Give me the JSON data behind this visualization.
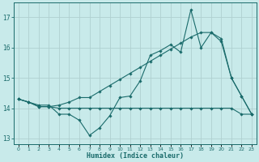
{
  "xlabel": "Humidex (Indice chaleur)",
  "background_color": "#c8eaea",
  "grid_color": "#b0d0d0",
  "line_color": "#1a6b6b",
  "x_values": [
    0,
    1,
    2,
    3,
    4,
    5,
    6,
    7,
    8,
    9,
    10,
    11,
    12,
    13,
    14,
    15,
    16,
    17,
    18,
    19,
    20,
    21,
    22,
    23
  ],
  "series1": [
    14.3,
    14.2,
    14.1,
    14.1,
    13.8,
    13.8,
    13.6,
    13.1,
    13.35,
    13.75,
    14.35,
    14.4,
    14.9,
    15.75,
    15.9,
    16.1,
    15.85,
    17.25,
    16.0,
    16.5,
    16.2,
    15.0,
    14.4,
    13.8
  ],
  "series2": [
    14.3,
    14.2,
    14.05,
    14.05,
    14.0,
    14.0,
    14.0,
    14.0,
    14.0,
    14.0,
    14.0,
    14.0,
    14.0,
    14.0,
    14.0,
    14.0,
    14.0,
    14.0,
    14.0,
    14.0,
    14.0,
    14.0,
    13.8,
    13.8
  ],
  "series3": [
    14.3,
    14.2,
    14.05,
    14.05,
    14.1,
    14.2,
    14.35,
    14.35,
    14.55,
    14.75,
    14.95,
    15.15,
    15.35,
    15.55,
    15.75,
    15.95,
    16.15,
    16.35,
    16.5,
    16.5,
    16.3,
    15.0,
    14.4,
    13.8
  ],
  "ylim": [
    12.8,
    17.5
  ],
  "yticks": [
    13,
    14,
    15,
    16,
    17
  ],
  "xlim": [
    -0.5,
    23.5
  ]
}
